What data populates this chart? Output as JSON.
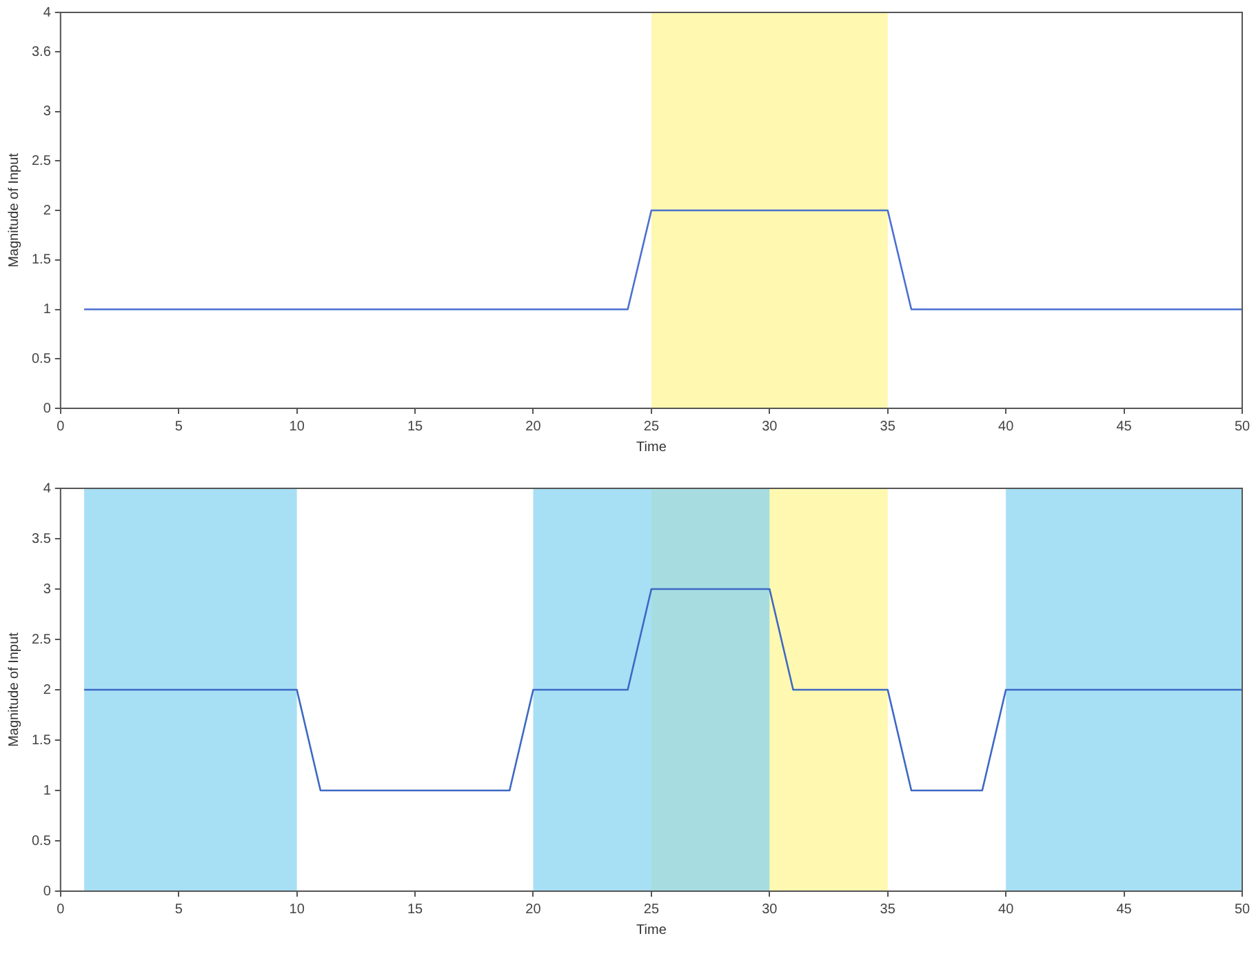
{
  "chart_data": [
    {
      "type": "line",
      "xlabel": "Time",
      "ylabel": "Magnitude of Input",
      "xlim": [
        0,
        50
      ],
      "xticks": [
        0,
        5,
        10,
        15,
        20,
        25,
        30,
        35,
        40,
        45,
        50
      ],
      "ylim": [
        0,
        4
      ],
      "yticks": [
        0,
        0.5,
        1,
        1.5,
        2,
        2.5,
        3,
        3.6,
        4
      ],
      "grid": false,
      "legend": false,
      "series": [
        {
          "color": "#4a6fd0",
          "x": [
            1,
            24,
            25,
            35,
            36,
            50
          ],
          "values": [
            1,
            1,
            2,
            2,
            1,
            1
          ]
        }
      ],
      "bands": [
        {
          "axis": "x",
          "from": 25,
          "to": 35,
          "color": "#fff8b0"
        }
      ]
    },
    {
      "type": "line",
      "xlabel": "Time",
      "ylabel": "Magnitude of Input",
      "xlim": [
        0,
        50
      ],
      "xticks": [
        0,
        5,
        10,
        15,
        20,
        25,
        30,
        35,
        40,
        45,
        50
      ],
      "ylim": [
        0,
        4
      ],
      "yticks": [
        0,
        0.5,
        1,
        1.5,
        2,
        2.5,
        3,
        3.5,
        4
      ],
      "grid": false,
      "legend": false,
      "series": [
        {
          "color": "#3d68c4",
          "x": [
            1,
            10,
            11,
            19,
            20,
            24,
            25,
            30,
            31,
            35,
            36,
            39,
            40,
            50
          ],
          "values": [
            2,
            2,
            1,
            1,
            2,
            2,
            3,
            3,
            2,
            2,
            1,
            1,
            2,
            2
          ]
        }
      ],
      "bands": [
        {
          "axis": "x",
          "from": 25,
          "to": 35,
          "color": "#fff8b0"
        },
        {
          "axis": "x",
          "from": 1,
          "to": 10,
          "color": "#8ad4f2"
        },
        {
          "axis": "x",
          "from": 20,
          "to": 30,
          "color": "#8ad4f2"
        },
        {
          "axis": "x",
          "from": 40,
          "to": 50,
          "color": "#8ad4f2"
        }
      ]
    }
  ]
}
